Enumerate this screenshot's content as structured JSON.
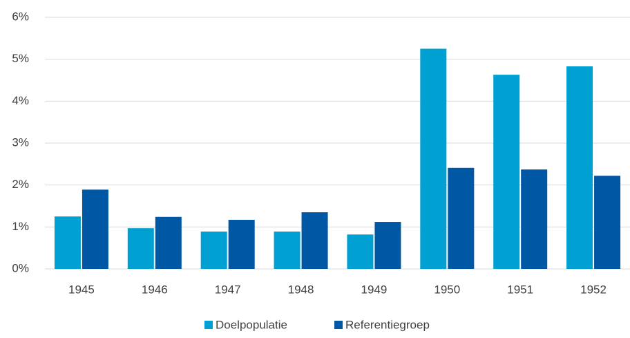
{
  "chart_data": {
    "type": "bar",
    "categories": [
      "1945",
      "1946",
      "1947",
      "1948",
      "1949",
      "1950",
      "1951",
      "1952"
    ],
    "series": [
      {
        "name": "Doelpopulatie",
        "color": "#00a0d2",
        "values": [
          1.25,
          0.97,
          0.89,
          0.89,
          0.82,
          5.25,
          4.63,
          4.83
        ]
      },
      {
        "name": "Referentiegroep",
        "color": "#0057a3",
        "values": [
          1.89,
          1.24,
          1.17,
          1.35,
          1.12,
          2.41,
          2.37,
          2.22
        ]
      }
    ],
    "ylim": [
      0,
      6
    ],
    "yticks": [
      {
        "value": 0,
        "label": "0%"
      },
      {
        "value": 1,
        "label": "1%"
      },
      {
        "value": 2,
        "label": "2%"
      },
      {
        "value": 3,
        "label": "3%"
      },
      {
        "value": 4,
        "label": "4%"
      },
      {
        "value": 5,
        "label": "5%"
      },
      {
        "value": 6,
        "label": "6%"
      }
    ],
    "grid": true,
    "legend": "bottom"
  }
}
